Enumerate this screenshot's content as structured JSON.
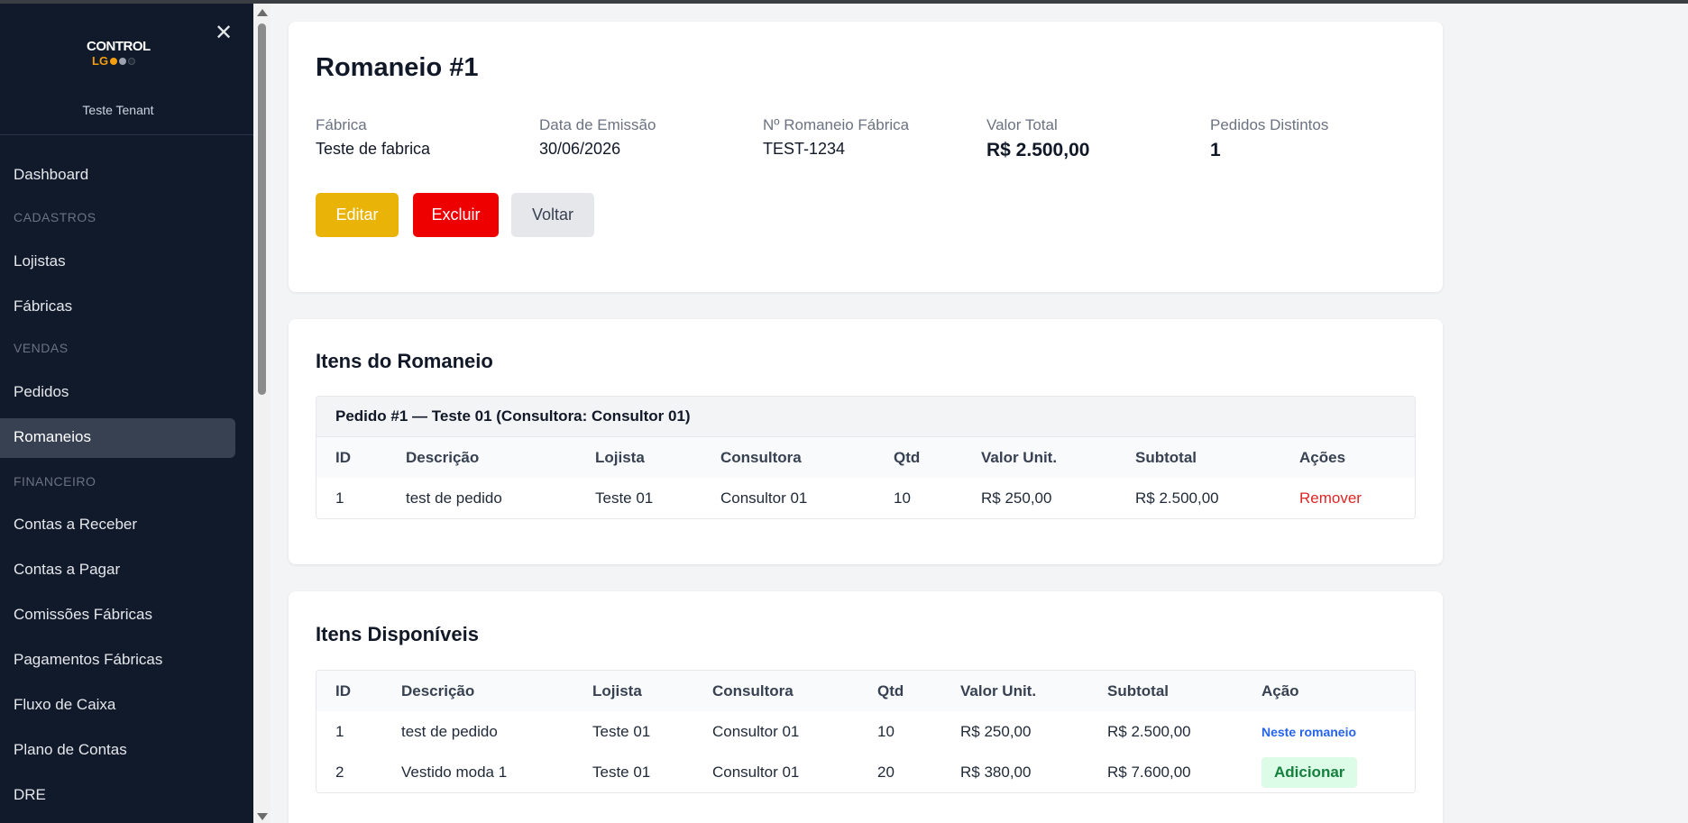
{
  "sidebar": {
    "logo": {
      "top": "CONTROL",
      "bottom": "LG"
    },
    "tenant": "Teste Tenant",
    "dashboard": "Dashboard",
    "sections": {
      "cadastros": "CADASTROS",
      "vendas": "VENDAS",
      "financeiro": "FINANCEIRO"
    },
    "items": {
      "lojistas": "Lojistas",
      "fabricas": "Fábricas",
      "pedidos": "Pedidos",
      "romaneios": "Romaneios",
      "contas_receber": "Contas a Receber",
      "contas_pagar": "Contas a Pagar",
      "comissoes": "Comissões Fábricas",
      "pagamentos": "Pagamentos Fábricas",
      "fluxo": "Fluxo de Caixa",
      "plano": "Plano de Contas",
      "dre": "DRE"
    },
    "active": "Romaneios"
  },
  "header": {
    "title": "Romaneio #1",
    "fields": [
      {
        "label": "Fábrica",
        "value": "Teste de fabrica"
      },
      {
        "label": "Data de Emissão",
        "value": "30/06/2026"
      },
      {
        "label": "Nº Romaneio Fábrica",
        "value": "TEST-1234"
      },
      {
        "label": "Valor Total",
        "value": "R$ 2.500,00"
      },
      {
        "label": "Pedidos Distintos",
        "value": "1"
      }
    ],
    "buttons": {
      "edit": "Editar",
      "delete": "Excluir",
      "back": "Voltar"
    }
  },
  "itens_romaneio": {
    "title": "Itens do Romaneio",
    "group_header": "Pedido #1 — Teste 01 (Consultora: Consultor 01)",
    "columns": [
      "ID",
      "Descrição",
      "Lojista",
      "Consultora",
      "Qtd",
      "Valor Unit.",
      "Subtotal",
      "Ações"
    ],
    "rows": [
      {
        "id": "1",
        "descricao": "test de pedido",
        "lojista": "Teste 01",
        "consultora": "Consultor 01",
        "qtd": "10",
        "valor_unit": "R$ 250,00",
        "subtotal": "R$ 2.500,00",
        "acao": "Remover"
      }
    ]
  },
  "itens_disponiveis": {
    "title": "Itens Disponíveis",
    "columns": [
      "ID",
      "Descrição",
      "Lojista",
      "Consultora",
      "Qtd",
      "Valor Unit.",
      "Subtotal",
      "Ação"
    ],
    "rows": [
      {
        "id": "1",
        "descricao": "test de pedido",
        "lojista": "Teste 01",
        "consultora": "Consultor 01",
        "qtd": "10",
        "valor_unit": "R$ 250,00",
        "subtotal": "R$ 2.500,00",
        "acao": "Neste romaneio"
      },
      {
        "id": "2",
        "descricao": "Vestido moda 1",
        "lojista": "Teste 01",
        "consultora": "Consultor 01",
        "qtd": "20",
        "valor_unit": "R$ 380,00",
        "subtotal": "R$ 7.600,00",
        "acao": "Adicionar"
      }
    ]
  },
  "colors": {
    "sidebar_bg": "#111a2b",
    "edit": "#eab308",
    "delete": "#ef0000",
    "remove_link": "#dc2626",
    "add_button_bg": "#dcfce7",
    "add_button_text": "#15803d"
  }
}
